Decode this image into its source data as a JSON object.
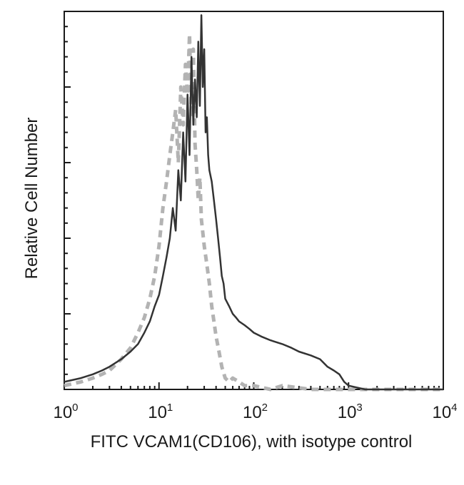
{
  "chart_data": {
    "type": "line",
    "title": "",
    "xlabel": "FITC VCAM1(CD106), with isotype control",
    "ylabel": "Relative Cell Number",
    "x_scale": "log",
    "xlim": [
      1,
      10000
    ],
    "ylim": [
      0,
      100
    ],
    "grid": false,
    "legend": "none",
    "x_ticks": [
      {
        "base": "10",
        "exp": "0",
        "value": 1
      },
      {
        "base": "10",
        "exp": "1",
        "value": 10
      },
      {
        "base": "10",
        "exp": "2",
        "value": 100
      },
      {
        "base": "10",
        "exp": "3",
        "value": 1000
      },
      {
        "base": "10",
        "exp": "4",
        "value": 10000
      }
    ],
    "series": [
      {
        "color": "#b3b3b3",
        "style": "dashed",
        "x": [
          1.0,
          1.5,
          2.0,
          2.5,
          3.0,
          4.0,
          5.0,
          6.0,
          7.0,
          8.0,
          9.0,
          10.0,
          11.0,
          12.0,
          13.0,
          14.0,
          15.0,
          16.0,
          17.0,
          18.0,
          19.0,
          20.0,
          21.0,
          22.0,
          23.0,
          24.0,
          25.0,
          26.0,
          27.0,
          28.0,
          30.0,
          32.0,
          34.0,
          36.0,
          38.0,
          40.0,
          43.0,
          46.0,
          50.0,
          55.0,
          60.0,
          70.0,
          80.0,
          100.0,
          150.0,
          200.0,
          400.0,
          1000.0,
          10000.0
        ],
        "y": [
          1,
          2,
          3,
          4,
          5,
          8,
          11,
          15,
          19,
          24,
          30,
          38,
          48,
          55,
          62,
          68,
          74,
          60,
          80,
          70,
          86,
          78,
          94,
          72,
          90,
          65,
          58,
          50,
          56,
          45,
          38,
          33,
          28,
          22,
          18,
          14,
          10,
          6,
          3,
          2,
          3,
          2,
          1,
          1,
          0,
          1,
          0,
          0,
          0
        ]
      },
      {
        "color": "#333333",
        "style": "solid",
        "x": [
          1.0,
          1.5,
          2.0,
          2.5,
          3.0,
          4.0,
          5.0,
          6.0,
          7.0,
          8.0,
          9.0,
          10.0,
          11.0,
          12.0,
          13.0,
          14.0,
          15.0,
          16.0,
          17.0,
          18.0,
          19.0,
          20.0,
          21.0,
          22.0,
          23.0,
          24.0,
          25.0,
          26.0,
          27.0,
          28.0,
          29.0,
          30.0,
          31.0,
          32.0,
          33.0,
          34.0,
          36.0,
          38.0,
          40.0,
          42.0,
          44.0,
          46.0,
          48.0,
          50.0,
          55.0,
          60.0,
          65.0,
          70.0,
          80.0,
          90.0,
          100.0,
          120.0,
          150.0,
          200.0,
          250.0,
          300.0,
          400.0,
          500.0,
          600.0,
          700.0,
          800.0,
          900.0,
          1000.0,
          1500.0,
          2000.0,
          5000.0,
          10000.0
        ],
        "y": [
          2,
          3,
          4,
          5,
          6,
          8,
          10,
          12,
          15,
          18,
          22,
          25,
          30,
          35,
          40,
          48,
          42,
          58,
          50,
          68,
          55,
          78,
          62,
          88,
          70,
          82,
          72,
          92,
          75,
          99,
          80,
          90,
          68,
          72,
          62,
          58,
          55,
          50,
          45,
          40,
          35,
          30,
          28,
          24,
          22,
          20,
          19,
          18,
          17,
          16,
          15,
          14,
          13,
          12,
          11,
          10,
          9,
          8,
          6,
          5,
          4,
          2,
          1,
          0,
          0,
          0,
          0
        ]
      }
    ]
  }
}
